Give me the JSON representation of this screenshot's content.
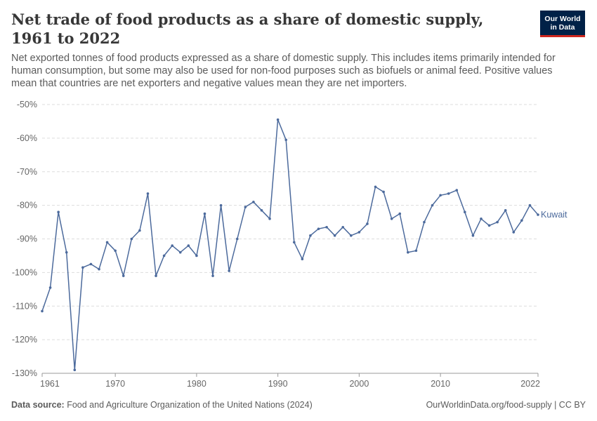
{
  "header": {
    "title": "Net trade of food products as a share of domestic supply, 1961 to 2022",
    "subtitle": "Net exported tonnes of food products expressed as a share of domestic supply. This includes items primarily intended for human consumption, but some may also be used for non-food purposes such as biofuels or animal feed. Positive values mean that countries are net exporters and negative values mean they are net importers.",
    "logo_line1": "Our World",
    "logo_line2": "in Data"
  },
  "footer": {
    "source_label": "Data source:",
    "source_text": "Food and Agriculture Organization of the United Nations (2024)",
    "credit": "OurWorldinData.org/food-supply | CC BY"
  },
  "colors": {
    "series": "#4c6a9c",
    "grid": "#dddddd",
    "axis": "#999999"
  },
  "chart_data": {
    "type": "line",
    "title": "Net trade of food products as a share of domestic supply, 1961 to 2022",
    "xlabel": "",
    "ylabel": "",
    "xlim": [
      1961,
      2022
    ],
    "ylim": [
      -130,
      -50
    ],
    "y_ticks": [
      -130,
      -120,
      -110,
      -100,
      -90,
      -80,
      -70,
      -60,
      -50
    ],
    "y_tick_labels": [
      "-130%",
      "-120%",
      "-110%",
      "-100%",
      "-90%",
      "-80%",
      "-70%",
      "-60%",
      "-50%"
    ],
    "x_ticks": [
      1961,
      1970,
      1980,
      1990,
      2000,
      2010,
      2022
    ],
    "x_tick_labels": [
      "1961",
      "1970",
      "1980",
      "1990",
      "2000",
      "2010",
      "2022"
    ],
    "grid": "horizontal dashed",
    "legend": "inline label at line end",
    "series": [
      {
        "name": "Kuwait",
        "x": [
          1961,
          1962,
          1963,
          1964,
          1965,
          1966,
          1967,
          1968,
          1969,
          1970,
          1971,
          1972,
          1973,
          1974,
          1975,
          1976,
          1977,
          1978,
          1979,
          1980,
          1981,
          1982,
          1983,
          1984,
          1985,
          1986,
          1987,
          1988,
          1989,
          1990,
          1991,
          1992,
          1993,
          1994,
          1995,
          1996,
          1997,
          1998,
          1999,
          2000,
          2001,
          2002,
          2003,
          2004,
          2005,
          2006,
          2007,
          2008,
          2009,
          2010,
          2011,
          2012,
          2013,
          2014,
          2015,
          2016,
          2017,
          2018,
          2019,
          2020,
          2021,
          2022
        ],
        "y": [
          -111.5,
          -104.5,
          -82,
          -94,
          -129,
          -98.5,
          -97.5,
          -99,
          -91,
          -93.5,
          -101,
          -90,
          -87.5,
          -76.5,
          -101,
          -95,
          -92,
          -94,
          -92,
          -95,
          -82.5,
          -101,
          -80,
          -99.5,
          -90,
          -80.5,
          -79,
          -81.5,
          -84,
          -54.5,
          -60.5,
          -91,
          -96,
          -89,
          -87,
          -86.5,
          -89,
          -86.5,
          -89,
          -88,
          -85.5,
          -74.5,
          -76,
          -84,
          -82.5,
          -94,
          -93.5,
          -85,
          -80,
          -77,
          -76.5,
          -75.5,
          -82,
          -89,
          -84,
          -86,
          -85,
          -81.5,
          -88,
          -84.5,
          -80,
          -82.8
        ]
      }
    ]
  }
}
